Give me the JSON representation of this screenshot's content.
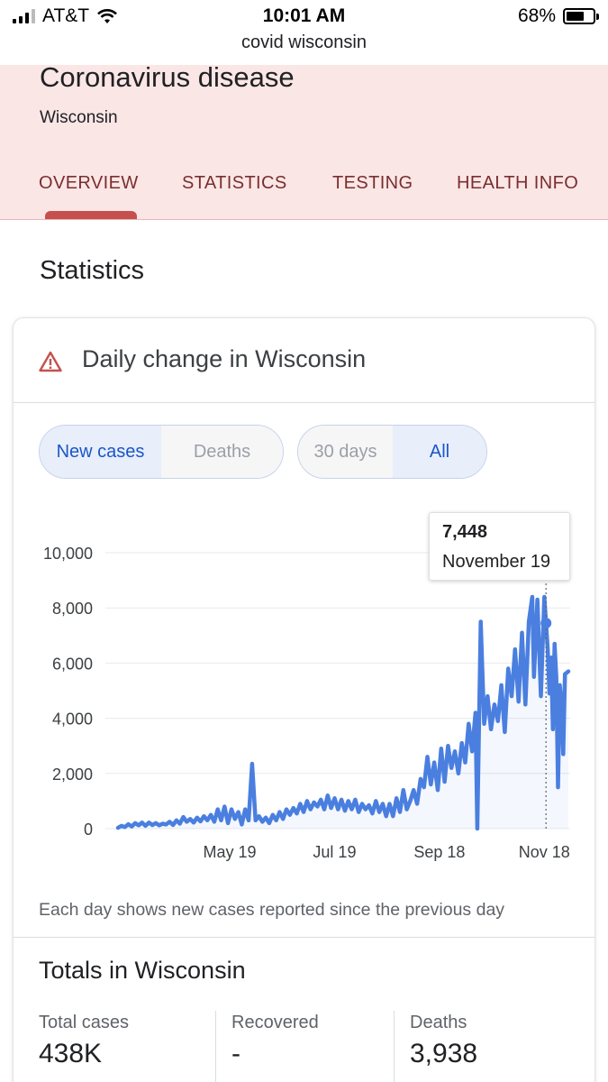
{
  "status_bar": {
    "carrier": "AT&T",
    "time": "10:01 AM",
    "url": "covid wisconsin",
    "battery": "68%",
    "battery_level": 0.68,
    "icons": [
      "signal-icon",
      "wifi-icon",
      "battery-icon"
    ]
  },
  "header": {
    "title": "Coronavirus disease",
    "subtitle": "Wisconsin",
    "tabs": [
      {
        "label": "OVERVIEW",
        "active": true
      },
      {
        "label": "STATISTICS",
        "active": false
      },
      {
        "label": "TESTING",
        "active": false
      },
      {
        "label": "HEALTH INFO",
        "active": false
      }
    ],
    "accent_color": "#c5504d",
    "background_color": "#fbe6e6"
  },
  "section_title": "Statistics",
  "card": {
    "title": "Daily change in Wisconsin",
    "icon": "warning-icon",
    "metric_toggle": {
      "options": [
        "New cases",
        "Deaths"
      ],
      "selected": "New cases"
    },
    "range_toggle": {
      "options": [
        "30 days",
        "All"
      ],
      "selected": "All"
    },
    "tooltip": {
      "value": "7,448",
      "date": "November 19"
    },
    "footnote": "Each day shows new cases reported since the previous day",
    "totals": {
      "title": "Totals in Wisconsin",
      "items": [
        {
          "label": "Total cases",
          "value": "438K"
        },
        {
          "label": "Recovered",
          "value": "-"
        },
        {
          "label": "Deaths",
          "value": "3,938"
        }
      ]
    }
  },
  "chart_data": {
    "type": "line",
    "x_ticks": [
      "May 19",
      "Jul 19",
      "Sep 18",
      "Nov 18"
    ],
    "y_ticks": [
      "0",
      "2,000",
      "4,000",
      "6,000",
      "8,000",
      "10,000"
    ],
    "ylim": [
      0,
      10000
    ],
    "line_color": "#4a7fe0",
    "grid": true,
    "highlight": {
      "x": "2020-11-19",
      "y": 7448
    },
    "series": [
      {
        "values": [
          [
            "2020-03-15",
            30
          ],
          [
            "2020-03-17",
            100
          ],
          [
            "2020-03-19",
            60
          ],
          [
            "2020-03-21",
            160
          ],
          [
            "2020-03-23",
            80
          ],
          [
            "2020-03-25",
            200
          ],
          [
            "2020-03-27",
            120
          ],
          [
            "2020-03-29",
            220
          ],
          [
            "2020-03-31",
            100
          ],
          [
            "2020-04-02",
            220
          ],
          [
            "2020-04-04",
            130
          ],
          [
            "2020-04-06",
            200
          ],
          [
            "2020-04-08",
            120
          ],
          [
            "2020-04-10",
            180
          ],
          [
            "2020-04-12",
            150
          ],
          [
            "2020-04-14",
            250
          ],
          [
            "2020-04-16",
            130
          ],
          [
            "2020-04-18",
            300
          ],
          [
            "2020-04-20",
            180
          ],
          [
            "2020-04-22",
            420
          ],
          [
            "2020-04-24",
            250
          ],
          [
            "2020-04-26",
            350
          ],
          [
            "2020-04-28",
            220
          ],
          [
            "2020-04-30",
            400
          ],
          [
            "2020-05-02",
            260
          ],
          [
            "2020-05-04",
            450
          ],
          [
            "2020-05-06",
            300
          ],
          [
            "2020-05-08",
            500
          ],
          [
            "2020-05-10",
            250
          ],
          [
            "2020-05-12",
            700
          ],
          [
            "2020-05-14",
            300
          ],
          [
            "2020-05-16",
            800
          ],
          [
            "2020-05-18",
            200
          ],
          [
            "2020-05-20",
            700
          ],
          [
            "2020-05-22",
            350
          ],
          [
            "2020-05-24",
            600
          ],
          [
            "2020-05-26",
            150
          ],
          [
            "2020-05-28",
            700
          ],
          [
            "2020-05-30",
            300
          ],
          [
            "2020-06-01",
            2350
          ],
          [
            "2020-06-03",
            300
          ],
          [
            "2020-06-05",
            450
          ],
          [
            "2020-06-07",
            250
          ],
          [
            "2020-06-09",
            400
          ],
          [
            "2020-06-11",
            200
          ],
          [
            "2020-06-13",
            500
          ],
          [
            "2020-06-15",
            300
          ],
          [
            "2020-06-17",
            600
          ],
          [
            "2020-06-19",
            350
          ],
          [
            "2020-06-21",
            700
          ],
          [
            "2020-06-23",
            500
          ],
          [
            "2020-06-25",
            750
          ],
          [
            "2020-06-27",
            550
          ],
          [
            "2020-06-29",
            900
          ],
          [
            "2020-07-01",
            600
          ],
          [
            "2020-07-03",
            1000
          ],
          [
            "2020-07-05",
            700
          ],
          [
            "2020-07-07",
            950
          ],
          [
            "2020-07-09",
            800
          ],
          [
            "2020-07-11",
            1050
          ],
          [
            "2020-07-13",
            700
          ],
          [
            "2020-07-15",
            1200
          ],
          [
            "2020-07-17",
            750
          ],
          [
            "2020-07-19",
            1100
          ],
          [
            "2020-07-21",
            700
          ],
          [
            "2020-07-23",
            1050
          ],
          [
            "2020-07-25",
            650
          ],
          [
            "2020-07-27",
            1000
          ],
          [
            "2020-07-29",
            700
          ],
          [
            "2020-07-31",
            1050
          ],
          [
            "2020-08-02",
            600
          ],
          [
            "2020-08-04",
            900
          ],
          [
            "2020-08-06",
            700
          ],
          [
            "2020-08-08",
            850
          ],
          [
            "2020-08-10",
            550
          ],
          [
            "2020-08-12",
            1000
          ],
          [
            "2020-08-14",
            600
          ],
          [
            "2020-08-16",
            900
          ],
          [
            "2020-08-18",
            450
          ],
          [
            "2020-08-20",
            900
          ],
          [
            "2020-08-22",
            450
          ],
          [
            "2020-08-24",
            1100
          ],
          [
            "2020-08-26",
            600
          ],
          [
            "2020-08-28",
            1400
          ],
          [
            "2020-08-30",
            700
          ],
          [
            "2020-09-01",
            1000
          ],
          [
            "2020-09-03",
            1400
          ],
          [
            "2020-09-05",
            900
          ],
          [
            "2020-09-07",
            1800
          ],
          [
            "2020-09-09",
            1500
          ],
          [
            "2020-09-11",
            2600
          ],
          [
            "2020-09-13",
            1600
          ],
          [
            "2020-09-15",
            2400
          ],
          [
            "2020-09-17",
            1400
          ],
          [
            "2020-09-19",
            2900
          ],
          [
            "2020-09-21",
            1700
          ],
          [
            "2020-09-23",
            3000
          ],
          [
            "2020-09-25",
            2200
          ],
          [
            "2020-09-27",
            2800
          ],
          [
            "2020-09-29",
            2000
          ],
          [
            "2020-10-01",
            3100
          ],
          [
            "2020-10-03",
            2400
          ],
          [
            "2020-10-05",
            3800
          ],
          [
            "2020-10-07",
            2800
          ],
          [
            "2020-10-09",
            4200
          ],
          [
            "2020-10-10",
            0
          ],
          [
            "2020-10-12",
            7500
          ],
          [
            "2020-10-14",
            3800
          ],
          [
            "2020-10-16",
            4800
          ],
          [
            "2020-10-18",
            3600
          ],
          [
            "2020-10-20",
            4500
          ],
          [
            "2020-10-22",
            3900
          ],
          [
            "2020-10-24",
            5200
          ],
          [
            "2020-10-26",
            3500
          ],
          [
            "2020-10-28",
            5800
          ],
          [
            "2020-10-30",
            4800
          ],
          [
            "2020-11-01",
            6500
          ],
          [
            "2020-11-03",
            4600
          ],
          [
            "2020-11-05",
            7100
          ],
          [
            "2020-11-07",
            4500
          ],
          [
            "2020-11-09",
            7500
          ],
          [
            "2020-11-11",
            8400
          ],
          [
            "2020-11-12",
            5500
          ],
          [
            "2020-11-14",
            8300
          ],
          [
            "2020-11-16",
            4800
          ],
          [
            "2020-11-18",
            8400
          ],
          [
            "2020-11-19",
            7448
          ],
          [
            "2020-11-20",
            6500
          ],
          [
            "2020-11-21",
            4900
          ],
          [
            "2020-11-22",
            6200
          ],
          [
            "2020-11-23",
            3600
          ],
          [
            "2020-11-24",
            6700
          ],
          [
            "2020-11-25",
            5500
          ],
          [
            "2020-11-26",
            1500
          ],
          [
            "2020-11-27",
            5200
          ],
          [
            "2020-11-28",
            4500
          ],
          [
            "2020-11-29",
            2700
          ],
          [
            "2020-11-30",
            5600
          ],
          [
            "2020-12-02",
            5700
          ]
        ]
      }
    ]
  }
}
